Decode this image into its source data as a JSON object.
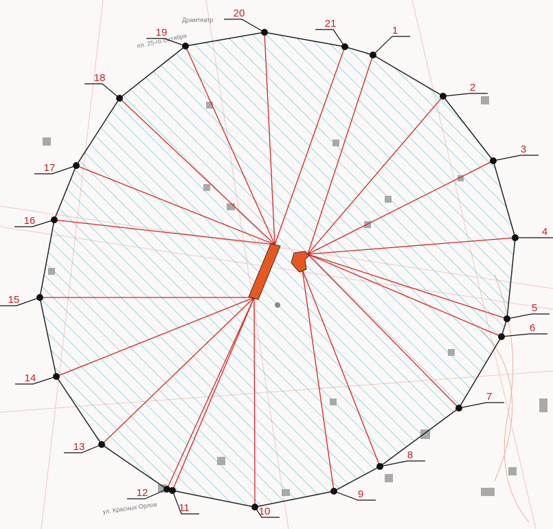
{
  "map": {
    "points": [
      {
        "label": "1"
      },
      {
        "label": "2"
      },
      {
        "label": "3"
      },
      {
        "label": "4"
      },
      {
        "label": "5"
      },
      {
        "label": "6"
      },
      {
        "label": "7"
      },
      {
        "label": "8"
      },
      {
        "label": "9"
      },
      {
        "label": "10"
      },
      {
        "label": "11"
      },
      {
        "label": "12"
      },
      {
        "label": "13"
      },
      {
        "label": "14"
      },
      {
        "label": "15"
      },
      {
        "label": "16"
      },
      {
        "label": "17"
      },
      {
        "label": "18"
      },
      {
        "label": "19"
      },
      {
        "label": "20"
      },
      {
        "label": "21"
      }
    ],
    "streets": [
      {
        "label": "пл. 25-го Октября"
      },
      {
        "label": "ул. Красных Орлов"
      },
      {
        "label": "Драмтеатр"
      }
    ]
  }
}
